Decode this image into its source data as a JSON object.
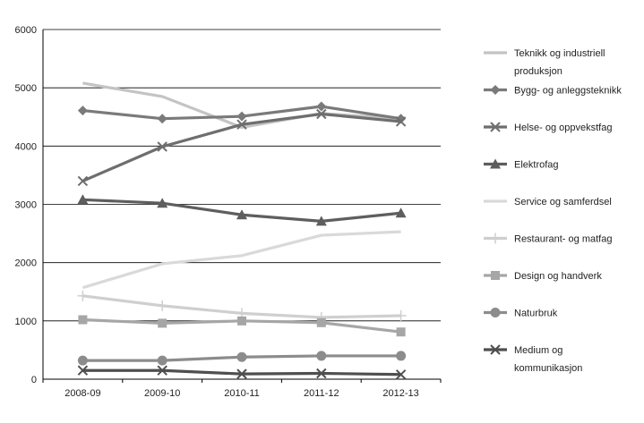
{
  "chart_data": {
    "type": "line",
    "categories": [
      "2008-09",
      "2009-10",
      "2010-11",
      "2011-12",
      "2012-13"
    ],
    "ylim": [
      0,
      6000
    ],
    "yticks": [
      0,
      1000,
      2000,
      3000,
      4000,
      5000,
      6000
    ],
    "grid": "horizontal",
    "legend_position": "right",
    "series": [
      {
        "name": "Teknikk og industriell produksjon",
        "name_lines": [
          "Teknikk og industriell",
          "produksjon"
        ],
        "color": "#c4c4c4",
        "marker": "none",
        "values": [
          5080,
          4850,
          4320,
          4560,
          4470
        ]
      },
      {
        "name": "Bygg- og anleggsteknikk",
        "name_lines": [
          "Bygg- og anleggsteknikk"
        ],
        "color": "#7a7a7a",
        "marker": "diamond",
        "values": [
          4610,
          4470,
          4510,
          4680,
          4470
        ]
      },
      {
        "name": "Helse- og oppvekstfag",
        "name_lines": [
          "Helse- og oppvekstfag"
        ],
        "color": "#6e6e6e",
        "marker": "x",
        "values": [
          3400,
          3990,
          4370,
          4550,
          4420
        ]
      },
      {
        "name": "Elektrofag",
        "name_lines": [
          "Elektrofag"
        ],
        "color": "#5e5e5e",
        "marker": "triangle",
        "values": [
          3080,
          3020,
          2820,
          2710,
          2850
        ]
      },
      {
        "name": "Service og samferdsel",
        "name_lines": [
          "Service og samferdsel"
        ],
        "color": "#d9d9d9",
        "marker": "none",
        "values": [
          1570,
          1980,
          2120,
          2470,
          2530
        ]
      },
      {
        "name": "Restaurant- og matfag",
        "name_lines": [
          "Restaurant- og matfag"
        ],
        "color": "#cfcfcf",
        "marker": "plus",
        "values": [
          1430,
          1260,
          1130,
          1060,
          1090
        ]
      },
      {
        "name": "Design og handverk",
        "name_lines": [
          "Design og handverk"
        ],
        "color": "#a6a6a6",
        "marker": "square",
        "values": [
          1020,
          960,
          1000,
          970,
          810
        ]
      },
      {
        "name": "Naturbruk",
        "name_lines": [
          "Naturbruk"
        ],
        "color": "#8c8c8c",
        "marker": "circle",
        "values": [
          320,
          320,
          380,
          400,
          400
        ]
      },
      {
        "name": "Medium og kommunikasjon",
        "name_lines": [
          "Medium og",
          "kommunikasjon"
        ],
        "color": "#4f4f4f",
        "marker": "x",
        "values": [
          150,
          150,
          90,
          100,
          80
        ]
      }
    ]
  }
}
